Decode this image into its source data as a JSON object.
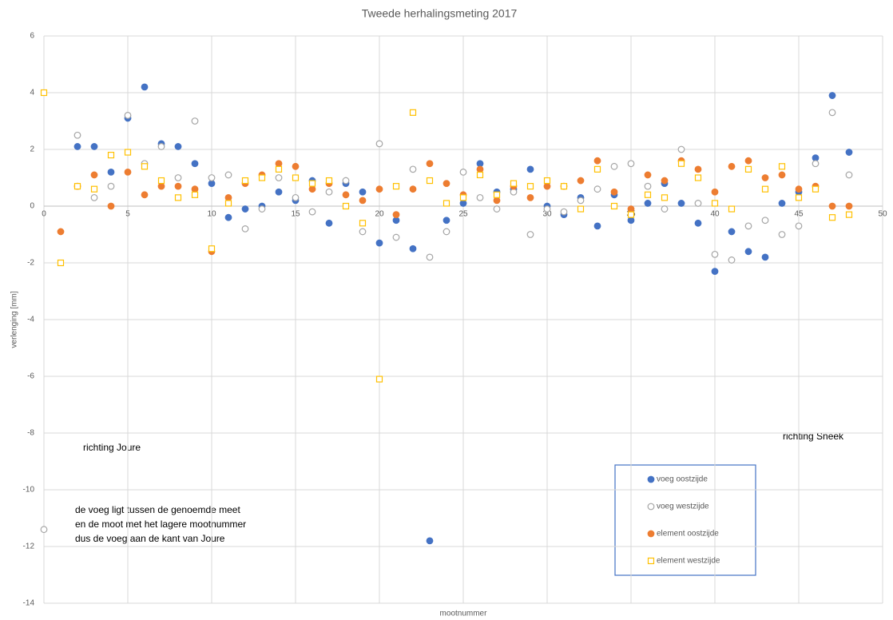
{
  "chart_data": {
    "type": "scatter",
    "title": "Tweede herhalingsmeting 2017",
    "xlabel": "mootnummer",
    "ylabel": "verlenging [mm]",
    "xlim": [
      0,
      50
    ],
    "xticks": [
      0,
      5,
      10,
      15,
      20,
      25,
      30,
      35,
      40,
      45,
      50
    ],
    "ylim": [
      -14,
      6
    ],
    "yticks": [
      -14,
      -12,
      -10,
      -8,
      -6,
      -4,
      -2,
      0,
      2,
      4,
      6
    ],
    "grid": true,
    "legend": "lower right",
    "annotations": [
      "richting Joure",
      "richting Sneek",
      "de voeg ligt tussen de genoemde meet",
      "en de moot met het lagere mootnummer",
      "dus de voeg aan de kant van Joure"
    ],
    "series": [
      {
        "name": "voeg oostzijde",
        "color": "#4472c4",
        "marker": "circle",
        "filled": true,
        "x": [
          2,
          3,
          4,
          5,
          6,
          7,
          8,
          9,
          10,
          11,
          12,
          13,
          14,
          15,
          16,
          17,
          18,
          19,
          20,
          21,
          22,
          23,
          24,
          25,
          26,
          27,
          28,
          29,
          30,
          31,
          32,
          33,
          34,
          35,
          36,
          37,
          38,
          39,
          40,
          41,
          42,
          43,
          44,
          45,
          46,
          47,
          48
        ],
        "values": [
          2.1,
          2.1,
          1.2,
          3.1,
          4.2,
          2.2,
          2.1,
          1.5,
          0.8,
          -0.4,
          -0.1,
          0.0,
          0.5,
          0.2,
          0.9,
          -0.6,
          0.8,
          0.5,
          -1.3,
          -0.5,
          -1.5,
          -11.8,
          -0.5,
          0.1,
          1.5,
          0.5,
          0.6,
          1.3,
          0.0,
          -0.3,
          0.3,
          -0.7,
          0.4,
          -0.5,
          0.1,
          0.8,
          0.1,
          -0.6,
          -2.3,
          -0.9,
          -1.6,
          -1.8,
          0.1,
          0.5,
          1.7,
          3.9,
          1.9
        ]
      },
      {
        "name": "voeg westzijde",
        "color": "#a5a5a5",
        "marker": "circle",
        "filled": false,
        "x": [
          0,
          2,
          3,
          4,
          5,
          6,
          7,
          8,
          9,
          10,
          11,
          12,
          13,
          14,
          15,
          16,
          17,
          18,
          19,
          20,
          21,
          22,
          23,
          24,
          25,
          26,
          27,
          28,
          29,
          30,
          31,
          32,
          33,
          34,
          35,
          36,
          37,
          38,
          39,
          40,
          41,
          42,
          43,
          44,
          45,
          46,
          47,
          48
        ],
        "values": [
          -11.4,
          2.5,
          0.3,
          0.7,
          3.2,
          1.5,
          2.1,
          1.0,
          3.0,
          1.0,
          1.1,
          -0.8,
          -0.1,
          1.0,
          0.3,
          -0.2,
          0.5,
          0.9,
          -0.9,
          2.2,
          -1.1,
          1.3,
          -1.8,
          -0.9,
          1.2,
          0.3,
          -0.1,
          0.5,
          -1.0,
          -0.1,
          -0.2,
          0.2,
          0.6,
          1.4,
          1.5,
          0.7,
          -0.1,
          2.0,
          0.1,
          -1.7,
          -1.9,
          -0.7,
          -0.5,
          -1.0,
          -0.7,
          1.5,
          3.3,
          1.1
        ]
      },
      {
        "name": "element oostzijde",
        "color": "#ed7d31",
        "marker": "circle",
        "filled": true,
        "x": [
          1,
          2,
          3,
          4,
          5,
          6,
          7,
          8,
          9,
          10,
          11,
          12,
          13,
          14,
          15,
          16,
          17,
          18,
          19,
          20,
          21,
          22,
          23,
          24,
          25,
          26,
          27,
          28,
          29,
          30,
          31,
          32,
          33,
          34,
          35,
          36,
          37,
          38,
          39,
          40,
          41,
          42,
          43,
          44,
          45,
          46,
          47,
          48
        ],
        "values": [
          -0.9,
          0.7,
          1.1,
          0.0,
          1.2,
          0.4,
          0.7,
          0.7,
          0.6,
          -1.6,
          0.3,
          0.8,
          1.1,
          1.5,
          1.4,
          0.6,
          0.8,
          0.4,
          0.2,
          0.6,
          -0.3,
          0.6,
          1.5,
          0.8,
          0.4,
          1.3,
          0.2,
          0.7,
          0.3,
          0.7,
          0.7,
          0.9,
          1.6,
          0.5,
          -0.1,
          1.1,
          0.9,
          1.6,
          1.3,
          0.5,
          1.4,
          1.6,
          1.0,
          1.1,
          0.6,
          0.7,
          0.0,
          0.0
        ]
      },
      {
        "name": "element westzijde",
        "color": "#ffc000",
        "marker": "square",
        "filled": false,
        "x": [
          0,
          1,
          2,
          3,
          4,
          5,
          6,
          7,
          8,
          9,
          10,
          11,
          12,
          13,
          14,
          15,
          16,
          17,
          18,
          19,
          20,
          21,
          22,
          23,
          24,
          25,
          26,
          27,
          28,
          29,
          30,
          31,
          32,
          33,
          34,
          35,
          36,
          37,
          38,
          39,
          40,
          41,
          42,
          43,
          44,
          45,
          46,
          47,
          48
        ],
        "values": [
          4.0,
          -2.0,
          0.7,
          0.6,
          1.8,
          1.9,
          1.4,
          0.9,
          0.3,
          0.4,
          -1.5,
          0.1,
          0.9,
          1.0,
          1.3,
          1.0,
          0.8,
          0.9,
          0.0,
          -0.6,
          -6.1,
          0.7,
          3.3,
          0.9,
          0.1,
          0.3,
          1.1,
          0.4,
          0.8,
          0.7,
          0.9,
          0.7,
          -0.1,
          1.3,
          0.0,
          -0.3,
          0.4,
          0.3,
          1.5,
          1.0,
          0.1,
          -0.1,
          1.3,
          0.6,
          1.4,
          0.3,
          0.6,
          -0.4,
          -0.3
        ]
      }
    ]
  }
}
